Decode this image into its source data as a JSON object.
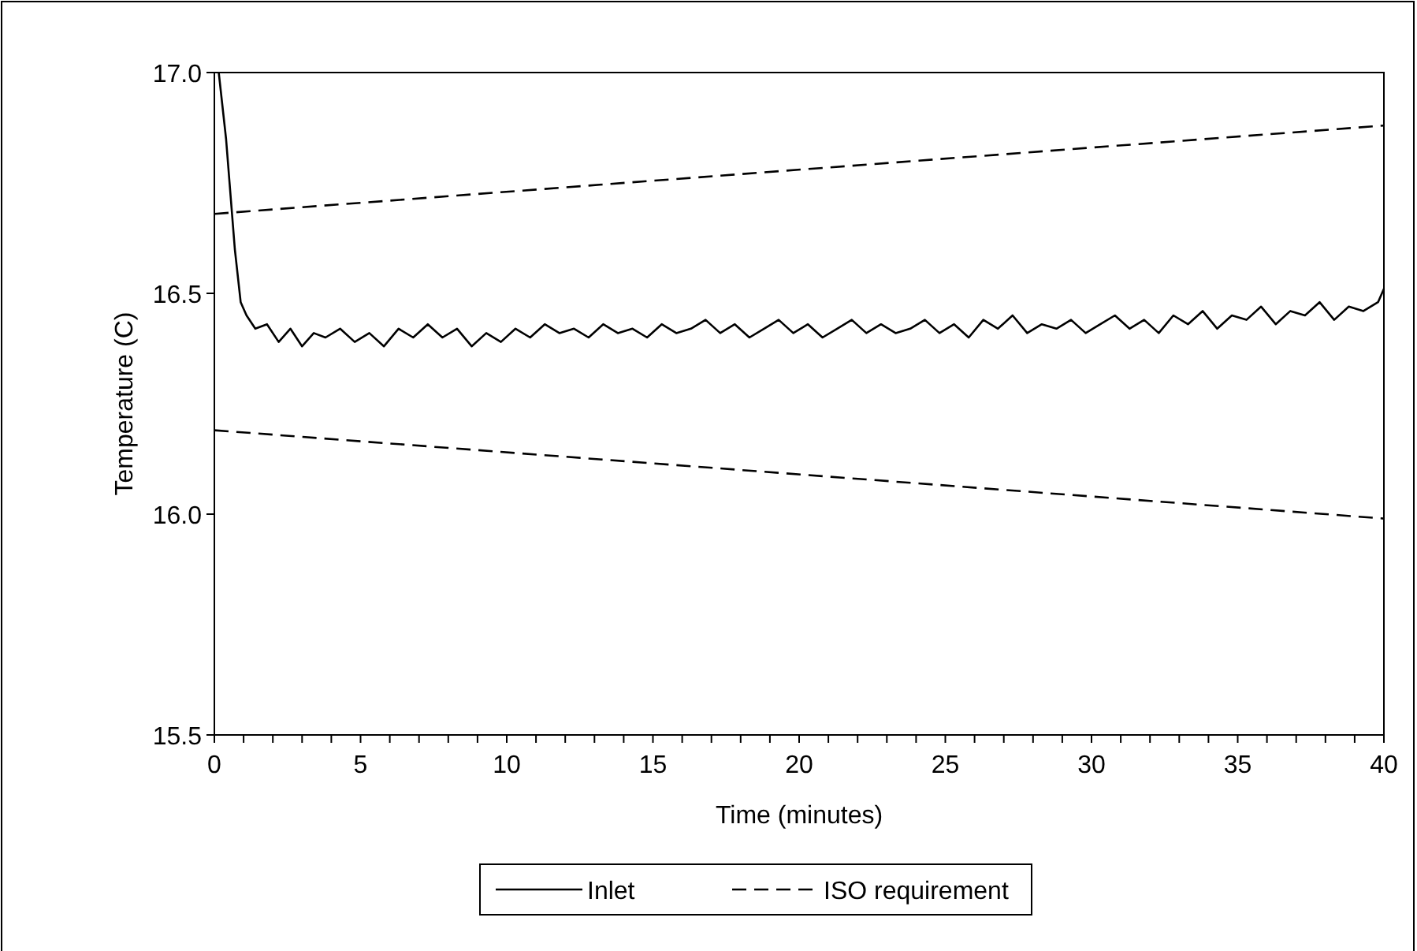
{
  "chart_data": {
    "type": "line",
    "xlabel": "Time (minutes)",
    "ylabel": "Temperature (C)",
    "xlim": [
      0,
      40
    ],
    "ylim": [
      15.5,
      17.0
    ],
    "xticks": [
      0,
      {
        "value": 1,
        "label": null
      },
      {
        "value": 2,
        "label": null
      },
      {
        "value": 3,
        "label": null
      },
      {
        "value": 4,
        "label": null
      },
      5,
      {
        "value": 6,
        "label": null
      },
      {
        "value": 7,
        "label": null
      },
      {
        "value": 8,
        "label": null
      },
      {
        "value": 9,
        "label": null
      },
      10,
      {
        "value": 11,
        "label": null
      },
      {
        "value": 12,
        "label": null
      },
      {
        "value": 13,
        "label": null
      },
      {
        "value": 14,
        "label": null
      },
      15,
      {
        "value": 16,
        "label": null
      },
      {
        "value": 17,
        "label": null
      },
      {
        "value": 18,
        "label": null
      },
      {
        "value": 19,
        "label": null
      },
      20,
      {
        "value": 21,
        "label": null
      },
      {
        "value": 22,
        "label": null
      },
      {
        "value": 23,
        "label": null
      },
      {
        "value": 24,
        "label": null
      },
      25,
      {
        "value": 26,
        "label": null
      },
      {
        "value": 27,
        "label": null
      },
      {
        "value": 28,
        "label": null
      },
      {
        "value": 29,
        "label": null
      },
      30,
      {
        "value": 31,
        "label": null
      },
      {
        "value": 32,
        "label": null
      },
      {
        "value": 33,
        "label": null
      },
      {
        "value": 34,
        "label": null
      },
      35,
      {
        "value": 36,
        "label": null
      },
      {
        "value": 37,
        "label": null
      },
      {
        "value": 38,
        "label": null
      },
      {
        "value": 39,
        "label": null
      },
      40
    ],
    "yticks": [
      15.5,
      {
        "value": 16,
        "label": "16.0"
      },
      16.5,
      {
        "value": 17,
        "label": "17.0"
      }
    ],
    "grid": false,
    "legend": "bottom",
    "series": [
      {
        "name": "Inlet",
        "color": "#000000",
        "line_style": "solid",
        "x": [
          0.15,
          0.4,
          0.7,
          0.9,
          1.1,
          1.4,
          1.8,
          2.2,
          2.6,
          3.0,
          3.4,
          3.8,
          4.3,
          4.8,
          5.3,
          5.8,
          6.3,
          6.8,
          7.3,
          7.8,
          8.3,
          8.8,
          9.3,
          9.8,
          10.3,
          10.8,
          11.3,
          11.8,
          12.3,
          12.8,
          13.3,
          13.8,
          14.3,
          14.8,
          15.3,
          15.8,
          16.3,
          16.8,
          17.3,
          17.8,
          18.3,
          18.8,
          19.3,
          19.8,
          20.3,
          20.8,
          21.3,
          21.8,
          22.3,
          22.8,
          23.3,
          23.8,
          24.3,
          24.8,
          25.3,
          25.8,
          26.3,
          26.8,
          27.3,
          27.8,
          28.3,
          28.8,
          29.3,
          29.8,
          30.3,
          30.8,
          31.3,
          31.8,
          32.3,
          32.8,
          33.3,
          33.8,
          34.3,
          34.8,
          35.3,
          35.8,
          36.3,
          36.8,
          37.3,
          37.8,
          38.3,
          38.8,
          39.3,
          39.8,
          40
        ],
        "values": [
          17.0,
          16.85,
          16.6,
          16.48,
          16.45,
          16.42,
          16.43,
          16.39,
          16.42,
          16.38,
          16.41,
          16.4,
          16.42,
          16.39,
          16.41,
          16.38,
          16.42,
          16.4,
          16.43,
          16.4,
          16.42,
          16.38,
          16.41,
          16.39,
          16.42,
          16.4,
          16.43,
          16.41,
          16.42,
          16.4,
          16.43,
          16.41,
          16.42,
          16.4,
          16.43,
          16.41,
          16.42,
          16.44,
          16.41,
          16.43,
          16.4,
          16.42,
          16.44,
          16.41,
          16.43,
          16.4,
          16.42,
          16.44,
          16.41,
          16.43,
          16.41,
          16.42,
          16.44,
          16.41,
          16.43,
          16.4,
          16.44,
          16.42,
          16.45,
          16.41,
          16.43,
          16.42,
          16.44,
          16.41,
          16.43,
          16.45,
          16.42,
          16.44,
          16.41,
          16.45,
          16.43,
          16.46,
          16.42,
          16.45,
          16.44,
          16.47,
          16.43,
          16.46,
          16.45,
          16.48,
          16.44,
          16.47,
          16.46,
          16.48,
          16.51
        ]
      },
      {
        "name": "ISO requirement",
        "color": "#000000",
        "line_style": "dashed",
        "x": [
          0,
          40
        ],
        "values": [
          16.68,
          16.88
        ]
      },
      {
        "color": "#000000",
        "line_style": "dashed",
        "x": [
          0,
          40
        ],
        "values": [
          16.19,
          15.99
        ]
      }
    ]
  }
}
